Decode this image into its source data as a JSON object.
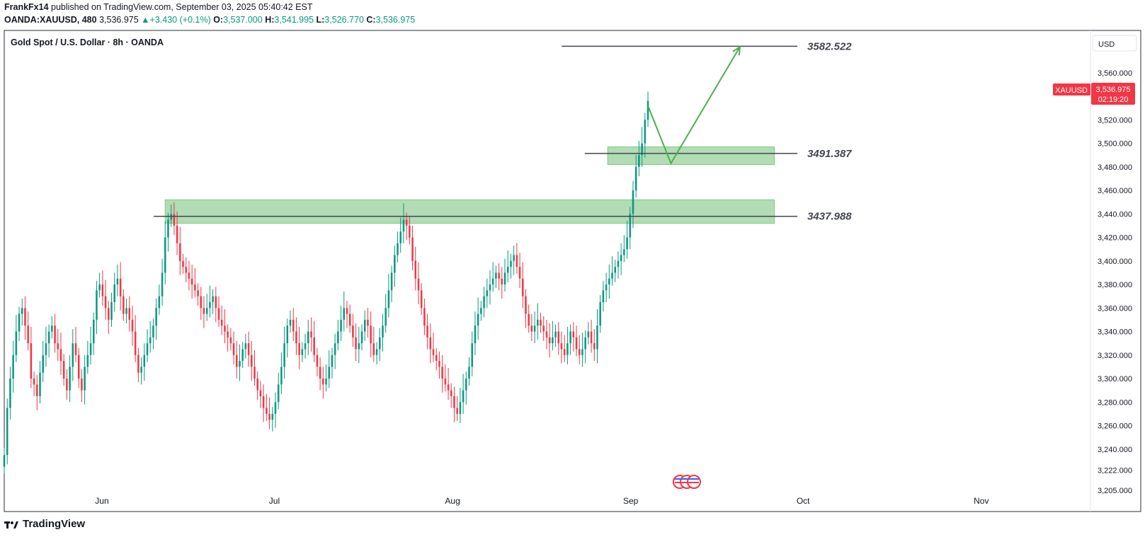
{
  "header": {
    "author": "FrankFx14",
    "published_text": "published on TradingView.com, September 03, 2025 05:40:42 EST",
    "symbol": "OANDA:XAUUSD, 480",
    "last": "3,536.975",
    "change": "+3.430 (+0.1%)",
    "o_label": "O:",
    "o_value": "3,537.000",
    "h_label": "H:",
    "h_value": "3,541.995",
    "l_label": "L:",
    "l_value": "3,526.770",
    "c_label": "C:",
    "c_value": "3,536.975"
  },
  "chart_title": "Gold Spot / U.S. Dollar · 8h · OANDA",
  "currency_label": "USD",
  "price_tag": {
    "symbol": "XAUUSD",
    "price": "3,536.975",
    "countdown": "02:19:20"
  },
  "footer": {
    "brand": "TradingView"
  },
  "colors": {
    "up": "#089981",
    "down": "#f23645",
    "zone": "#a5d6a7",
    "arrow": "#4caf50",
    "line": "#434651"
  },
  "chart_data": {
    "type": "candlestick",
    "ylim": [
      3205,
      3590
    ],
    "y_ticks": [
      "3,205.000",
      "3,222.000",
      "3,240.000",
      "3,260.000",
      "3,280.000",
      "3,300.000",
      "3,320.000",
      "3,340.000",
      "3,360.000",
      "3,380.000",
      "3,400.000",
      "3,420.000",
      "3,440.000",
      "3,460.000",
      "3,480.000",
      "3,500.000",
      "3,520.000",
      "3,540.000",
      "3,560.000"
    ],
    "y_tick_values": [
      3205,
      3222,
      3240,
      3260,
      3280,
      3300,
      3320,
      3340,
      3360,
      3380,
      3400,
      3420,
      3440,
      3460,
      3480,
      3500,
      3520,
      3540,
      3560
    ],
    "x_labels": [
      "Jun",
      "Jul",
      "Aug",
      "Sep",
      "Oct",
      "Nov"
    ],
    "x_label_dates": [
      "2025-06-01",
      "2025-07-01",
      "2025-08-01",
      "2025-09-01",
      "2025-10-01",
      "2025-11-01"
    ],
    "x_range": [
      "2025-05-15",
      "2025-11-20"
    ],
    "levels": [
      {
        "label": "3582.522",
        "value": 3582.522,
        "from": "2025-08-20",
        "to": "2025-09-30"
      },
      {
        "label": "3491.387",
        "value": 3491.387,
        "from": "2025-08-24",
        "to": "2025-09-30"
      },
      {
        "label": "3437.988",
        "value": 3437.988,
        "from": "2025-06-10",
        "to": "2025-09-30"
      }
    ],
    "zones": [
      {
        "from": "2025-08-28",
        "to": "2025-09-26",
        "top": 3497,
        "bottom": 3482
      },
      {
        "from": "2025-06-12",
        "to": "2025-09-26",
        "top": 3452,
        "bottom": 3432
      }
    ],
    "projection": [
      {
        "date": "2025-09-04",
        "value": 3532
      },
      {
        "date": "2025-09-08",
        "value": 3483
      },
      {
        "date": "2025-09-20",
        "value": 3582
      }
    ],
    "series": [
      {
        "values": [
          3235,
          3275,
          3300,
          3320,
          3340,
          3355,
          3360,
          3345,
          3330,
          3300,
          3295,
          3285,
          3305,
          3320,
          3330,
          3340,
          3345,
          3330,
          3325,
          3315,
          3300,
          3290,
          3310,
          3330,
          3320,
          3300,
          3290,
          3310,
          3320,
          3330,
          3350,
          3375,
          3380,
          3370,
          3360,
          3350,
          3365,
          3380,
          3385,
          3370,
          3355,
          3360,
          3350,
          3340,
          3320,
          3305,
          3310,
          3320,
          3330,
          3335,
          3345,
          3360,
          3370,
          3390,
          3420,
          3435,
          3440,
          3430,
          3415,
          3400,
          3395,
          3390,
          3385,
          3380,
          3375,
          3370,
          3360,
          3355,
          3360,
          3365,
          3370,
          3360,
          3350,
          3345,
          3340,
          3335,
          3330,
          3320,
          3310,
          3315,
          3325,
          3330,
          3320,
          3310,
          3300,
          3290,
          3285,
          3275,
          3270,
          3265,
          3270,
          3280,
          3295,
          3310,
          3330,
          3345,
          3350,
          3340,
          3330,
          3320,
          3325,
          3330,
          3340,
          3335,
          3320,
          3310,
          3300,
          3295,
          3300,
          3310,
          3320,
          3330,
          3340,
          3350,
          3360,
          3355,
          3345,
          3335,
          3325,
          3330,
          3340,
          3350,
          3345,
          3330,
          3320,
          3325,
          3335,
          3345,
          3360,
          3375,
          3390,
          3405,
          3415,
          3425,
          3435,
          3430,
          3420,
          3400,
          3385,
          3375,
          3360,
          3345,
          3335,
          3325,
          3320,
          3315,
          3310,
          3300,
          3295,
          3290,
          3285,
          3275,
          3270,
          3280,
          3290,
          3300,
          3310,
          3330,
          3345,
          3355,
          3360,
          3370,
          3375,
          3380,
          3385,
          3390,
          3385,
          3380,
          3390,
          3395,
          3400,
          3405,
          3395,
          3385,
          3370,
          3355,
          3345,
          3340,
          3345,
          3350,
          3345,
          3340,
          3335,
          3330,
          3335,
          3340,
          3330,
          3325,
          3320,
          3330,
          3340,
          3335,
          3325,
          3320,
          3325,
          3335,
          3340,
          3330,
          3325,
          3345,
          3365,
          3375,
          3380,
          3385,
          3390,
          3395,
          3400,
          3405,
          3410,
          3420,
          3440,
          3460,
          3480,
          3490,
          3500,
          3520,
          3536
        ]
      }
    ]
  }
}
